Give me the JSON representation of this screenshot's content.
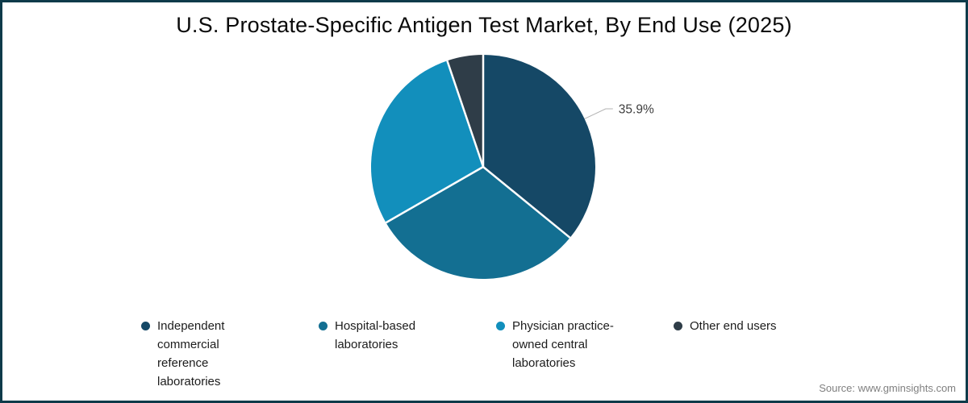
{
  "title": "U.S. Prostate-Specific Antigen Test Market, By End Use (2025)",
  "source": "Source: www.gminsights.com",
  "colors": {
    "border": "#0E3B4A",
    "background": "#ffffff",
    "slice_separator": "#ffffff",
    "leader_line": "#b3b3b3",
    "data_label_text": "#3d3d3d"
  },
  "chart_data": {
    "type": "pie",
    "title": "U.S. Prostate-Specific Antigen Test Market, By End Use (2025)",
    "start_angle_deg": 0,
    "direction": "clockwise",
    "legend_position": "bottom",
    "slices": [
      {
        "label": "Independent commercial reference laboratories",
        "value": 35.9,
        "color": "#154866",
        "data_label": "35.9%"
      },
      {
        "label": "Hospital-based laboratories",
        "value": 30.8,
        "color": "#136F92",
        "data_label": ""
      },
      {
        "label": "Physician practice-owned central laboratories",
        "value": 28.1,
        "color": "#128FBC",
        "data_label": ""
      },
      {
        "label": "Other end users",
        "value": 5.2,
        "color": "#2F3D48",
        "data_label": ""
      }
    ]
  },
  "legend": {
    "items": [
      {
        "label": "Independent\ncommercial\nreference\nlaboratories",
        "color": "#154866"
      },
      {
        "label": "Hospital-based\nlaboratories",
        "color": "#136F92"
      },
      {
        "label": "Physician practice-\nowned central\nlaboratories",
        "color": "#128FBC"
      },
      {
        "label": "Other end users",
        "color": "#2F3D48"
      }
    ]
  }
}
